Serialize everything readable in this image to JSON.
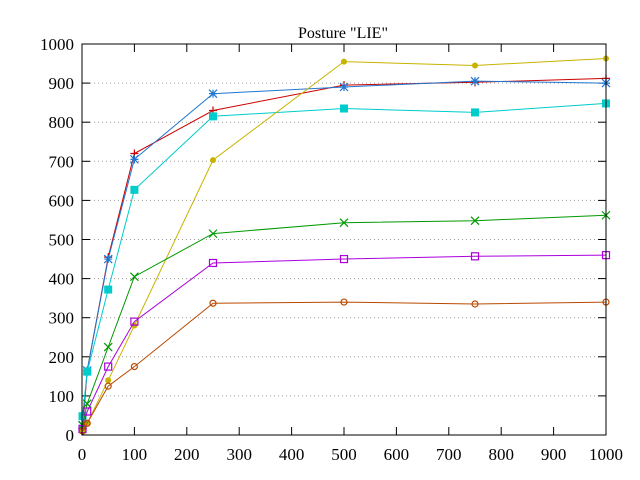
{
  "chart_data": {
    "type": "line",
    "title": "Posture \"LIE\"",
    "xlabel": "",
    "ylabel": "",
    "xlim": [
      0,
      1000
    ],
    "ylim": [
      0,
      1000
    ],
    "xticks": [
      0,
      100,
      200,
      300,
      400,
      500,
      600,
      700,
      800,
      900,
      1000
    ],
    "yticks": [
      0,
      100,
      200,
      300,
      400,
      500,
      600,
      700,
      800,
      900,
      1000
    ],
    "grid": "dotted horizontal",
    "legend": "none",
    "series": [
      {
        "color": "#cc0000",
        "marker": "plus",
        "x": [
          1,
          10,
          50,
          100,
          250,
          500,
          750,
          1000
        ],
        "y": [
          10,
          165,
          455,
          720,
          830,
          895,
          902,
          912
        ]
      },
      {
        "color": "#1f77d0",
        "marker": "asterisk",
        "x": [
          1,
          10,
          50,
          100,
          250,
          500,
          750,
          1000
        ],
        "y": [
          25,
          165,
          450,
          705,
          873,
          890,
          905,
          900
        ]
      },
      {
        "color": "#00cccc",
        "marker": "filled-square",
        "x": [
          1,
          10,
          50,
          100,
          250,
          500,
          750,
          1000
        ],
        "y": [
          48,
          162,
          372,
          627,
          815,
          835,
          825,
          848
        ]
      },
      {
        "color": "#c8b400",
        "marker": "filled-circle",
        "x": [
          1,
          10,
          50,
          100,
          250,
          500,
          750,
          1000
        ],
        "y": [
          10,
          30,
          140,
          280,
          703,
          955,
          945,
          963
        ]
      },
      {
        "color": "#009900",
        "marker": "cross",
        "x": [
          1,
          10,
          50,
          100,
          250,
          500,
          750,
          1000
        ],
        "y": [
          25,
          80,
          225,
          405,
          515,
          543,
          548,
          562
        ]
      },
      {
        "color": "#aa00dd",
        "marker": "open-square",
        "x": [
          1,
          10,
          50,
          100,
          250,
          500,
          750,
          1000
        ],
        "y": [
          15,
          60,
          175,
          290,
          440,
          450,
          457,
          460
        ]
      },
      {
        "color": "#b84a00",
        "marker": "open-circle",
        "x": [
          1,
          10,
          50,
          100,
          250,
          500,
          750,
          1000
        ],
        "y": [
          10,
          30,
          125,
          175,
          337,
          340,
          335,
          340
        ]
      }
    ]
  }
}
